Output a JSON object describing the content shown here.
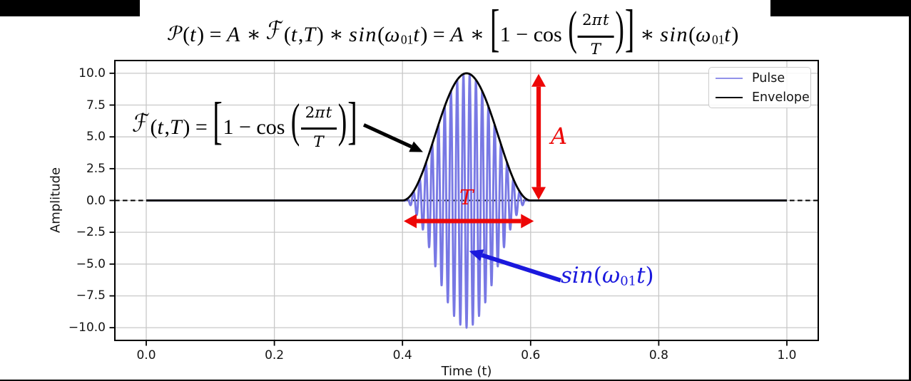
{
  "figure": {
    "background": "#ffffff",
    "frame_color": "#000000"
  },
  "title_formula": {
    "text": "P(t) = A * F(t,T) * sin(ω₀₁t) = A * [1 − cos(2πt/T)] * sin(ω₀₁t)",
    "tokens": [
      {
        "k": "glyph",
        "t": "scriptP"
      },
      {
        "k": "up",
        "t": "("
      },
      {
        "k": "it",
        "t": "t"
      },
      {
        "k": "up",
        "t": ") = "
      },
      {
        "k": "it",
        "t": "A"
      },
      {
        "k": "up",
        "t": " ∗ "
      },
      {
        "k": "glyph",
        "t": "scriptF"
      },
      {
        "k": "up",
        "t": "("
      },
      {
        "k": "it",
        "t": "t"
      },
      {
        "k": "up",
        "t": ","
      },
      {
        "k": "it",
        "t": "T"
      },
      {
        "k": "up",
        "t": ") ∗ "
      },
      {
        "k": "it",
        "t": "sin"
      },
      {
        "k": "up",
        "t": "("
      },
      {
        "k": "it",
        "t": "ω"
      },
      {
        "k": "sub",
        "t": "01"
      },
      {
        "k": "it",
        "t": "t"
      },
      {
        "k": "up",
        "t": ") = "
      },
      {
        "k": "it",
        "t": "A"
      },
      {
        "k": "up",
        "t": " ∗ "
      },
      {
        "k": "big",
        "t": "["
      },
      {
        "k": "up",
        "t": "1 − cos "
      },
      {
        "k": "big",
        "t": "("
      },
      {
        "k": "frac",
        "num": [
          {
            "k": "up",
            "t": "2"
          },
          {
            "k": "it",
            "t": "πt"
          }
        ],
        "den": [
          {
            "k": "it",
            "t": "T"
          }
        ]
      },
      {
        "k": "big",
        "t": ")"
      },
      {
        "k": "big",
        "t": "]"
      },
      {
        "k": "up",
        "t": " ∗ "
      },
      {
        "k": "it",
        "t": "sin"
      },
      {
        "k": "up",
        "t": "("
      },
      {
        "k": "it",
        "t": "ω"
      },
      {
        "k": "sub",
        "t": "01"
      },
      {
        "k": "it",
        "t": "t"
      },
      {
        "k": "up",
        "t": ")"
      }
    ]
  },
  "chart_data": {
    "type": "line",
    "title": "P(t) = A * F(t,T) * sin(ω₀₁t) = A * [1 − cos(2πt/T)] * sin(ω₀₁t)",
    "xlabel": "Time (t)",
    "ylabel": "Amplitude",
    "xlim": [
      -0.049,
      1.049
    ],
    "ylim": [
      -11,
      11
    ],
    "xticks": [
      {
        "v": 0.0,
        "label": "0.0"
      },
      {
        "v": 0.2,
        "label": "0.2"
      },
      {
        "v": 0.4,
        "label": "0.4"
      },
      {
        "v": 0.6,
        "label": "0.6"
      },
      {
        "v": 0.8,
        "label": "0.8"
      },
      {
        "v": 1.0,
        "label": "1.0"
      }
    ],
    "yticks": [
      {
        "v": 10.0,
        "label": "10.0"
      },
      {
        "v": 7.5,
        "label": "7.5"
      },
      {
        "v": 5.0,
        "label": "5.0"
      },
      {
        "v": 2.5,
        "label": "2.5"
      },
      {
        "v": 0.0,
        "label": "0.0"
      },
      {
        "v": -2.5,
        "label": "−2.5"
      },
      {
        "v": -5.0,
        "label": "−5.0"
      },
      {
        "v": -7.5,
        "label": "−7.5"
      },
      {
        "v": -10.0,
        "label": "−10.0"
      }
    ],
    "grid": {
      "show": true,
      "color": "#c8c8c8"
    },
    "zero_line": {
      "y": 0,
      "style": "dashed",
      "color": "#000000"
    },
    "series": [
      {
        "name": "Pulse",
        "model": "envelope_modulated_sine",
        "color": "#7878e4",
        "line_width": 2.9,
        "amplitude": 10,
        "pulse_start": 0.4,
        "pulse_end": 0.6,
        "carrier_cycles_in_pulse": 20.5,
        "carrier_sign": -1,
        "x_range": [
          0,
          1
        ],
        "samples": 3400
      },
      {
        "name": "Envelope",
        "model": "raised_cosine_envelope",
        "color": "#000000",
        "line_width": 2.8,
        "amplitude": 10,
        "pulse_start": 0.4,
        "pulse_end": 0.6,
        "x_range": [
          0,
          1
        ],
        "samples": 600
      }
    ],
    "legend": {
      "position": "upper right",
      "entries": [
        {
          "label": "Pulse",
          "color": "#9292ea"
        },
        {
          "label": "Envelope",
          "color": "#000000"
        }
      ]
    },
    "annotations": {
      "amplitude_arrow": {
        "label": "A",
        "color": "#ed0707",
        "type": "double_arrow_vertical",
        "x": 0.6125,
        "from_y": 0.05,
        "to_y": 9.95
      },
      "period_arrow": {
        "label": "T",
        "color": "#ed0707",
        "type": "double_arrow_horizontal",
        "y": -1.62,
        "from_x": 0.402,
        "to_x": 0.605
      },
      "envelope_formula": {
        "text": "F(t,T) = [1 − cos(2πt/T)]",
        "color": "#000000",
        "arrow": {
          "from_x": 0.3396,
          "from_y": 5.94,
          "to_x": 0.432,
          "to_y": 3.81
        },
        "tokens": [
          {
            "k": "glyph",
            "t": "scriptF"
          },
          {
            "k": "up",
            "t": "("
          },
          {
            "k": "it",
            "t": "t"
          },
          {
            "k": "up",
            "t": ","
          },
          {
            "k": "it",
            "t": "T"
          },
          {
            "k": "up",
            "t": ") = "
          },
          {
            "k": "big",
            "t": "["
          },
          {
            "k": "up",
            "t": "1 − cos "
          },
          {
            "k": "big",
            "t": "("
          },
          {
            "k": "frac",
            "num": [
              {
                "k": "up",
                "t": "2"
              },
              {
                "k": "it",
                "t": "πt"
              }
            ],
            "den": [
              {
                "k": "it",
                "t": "T"
              }
            ]
          },
          {
            "k": "big",
            "t": ")"
          },
          {
            "k": "big",
            "t": "]"
          }
        ]
      },
      "carrier_formula": {
        "text": "sin(ω₀₁t)",
        "color": "#1a18dd",
        "arrow": {
          "from_x": 0.647,
          "from_y": -6.28,
          "to_x": 0.504,
          "to_y": -3.98
        },
        "tokens": [
          {
            "k": "it",
            "t": "sin"
          },
          {
            "k": "up",
            "t": "("
          },
          {
            "k": "it",
            "t": "ω"
          },
          {
            "k": "sub",
            "t": "01"
          },
          {
            "k": "it",
            "t": "t"
          },
          {
            "k": "up",
            "t": ")"
          }
        ]
      }
    }
  }
}
